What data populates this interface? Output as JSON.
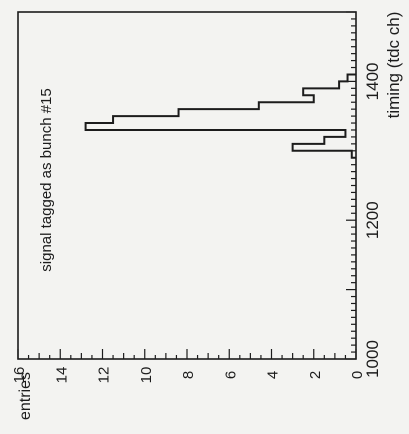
{
  "chart_data": {
    "type": "histogram",
    "annotation": "signal tagged as bunch #15",
    "xlabel": "timing (tdc ch)",
    "ylabel": "entries",
    "xlim": [
      1000,
      1500
    ],
    "ylim": [
      0,
      16
    ],
    "x_ticks": [
      "1000",
      "1200",
      "1400"
    ],
    "y_ticks": [
      "0",
      "2",
      "4",
      "6",
      "8",
      "10",
      "12",
      "14",
      "16"
    ],
    "bin_width": 10,
    "bins": [
      {
        "x": 1290,
        "count": 0.2
      },
      {
        "x": 1300,
        "count": 3.0
      },
      {
        "x": 1310,
        "count": 1.5
      },
      {
        "x": 1320,
        "count": 0.5
      },
      {
        "x": 1330,
        "count": 12.8
      },
      {
        "x": 1340,
        "count": 11.5
      },
      {
        "x": 1350,
        "count": 8.4
      },
      {
        "x": 1360,
        "count": 4.6
      },
      {
        "x": 1370,
        "count": 2.0
      },
      {
        "x": 1380,
        "count": 2.5
      },
      {
        "x": 1390,
        "count": 0.8
      },
      {
        "x": 1400,
        "count": 0.4
      }
    ],
    "grid": false,
    "orientation": "rotated-90-ccw"
  },
  "colors": {
    "ink": "#1c1c1c",
    "paper": "#f3f3f1"
  }
}
